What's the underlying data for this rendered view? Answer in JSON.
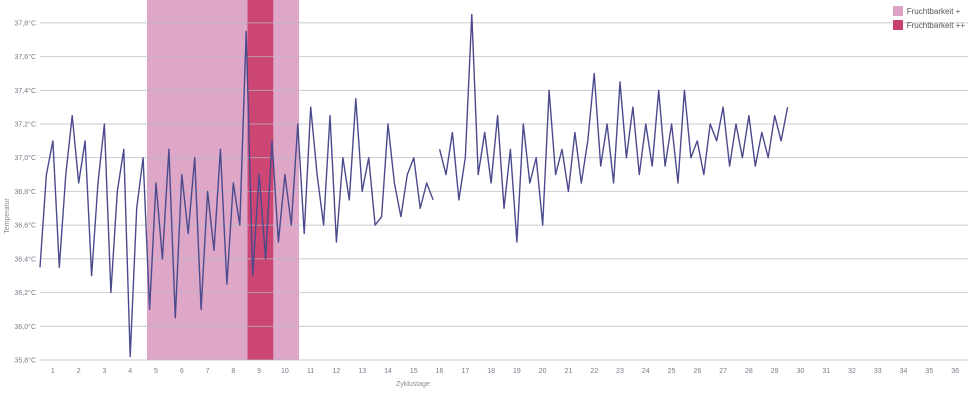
{
  "chart_data": {
    "type": "line",
    "xlabel": "Zyklustage",
    "ylabel": "Temperatur",
    "x_categories": [
      "1",
      "2",
      "3",
      "4",
      "5",
      "6",
      "7",
      "8",
      "9",
      "10",
      "11",
      "12",
      "13",
      "14",
      "15",
      "16",
      "17",
      "18",
      "19",
      "20",
      "21",
      "22",
      "23",
      "24",
      "25",
      "26",
      "27",
      "28",
      "29",
      "30",
      "31",
      "32",
      "33",
      "34",
      "35",
      "36"
    ],
    "y_ticks": [
      {
        "value": 35.8,
        "label": "35,8°C"
      },
      {
        "value": 36.0,
        "label": "36,0°C"
      },
      {
        "value": 36.2,
        "label": "36,2°C"
      },
      {
        "value": 36.4,
        "label": "36,4°C"
      },
      {
        "value": 36.6,
        "label": "36,6°C"
      },
      {
        "value": 36.8,
        "label": "36,8°C"
      },
      {
        "value": 37.0,
        "label": "37,0°C"
      },
      {
        "value": 37.2,
        "label": "37,2°C"
      },
      {
        "value": 37.4,
        "label": "37,4°C"
      },
      {
        "value": 37.6,
        "label": "37,6°C"
      },
      {
        "value": 37.8,
        "label": "37,8°C"
      }
    ],
    "ylim": [
      35.8,
      37.9
    ],
    "xlim": [
      0.5,
      36.5
    ],
    "grid": true,
    "legend_position": "top-right",
    "legend": [
      {
        "label": "Fruchtbarkeit +",
        "color": "#dca2c5"
      },
      {
        "label": "Fruchtbarkeit ++",
        "color": "#c9406f"
      }
    ],
    "bands": [
      {
        "name": "Fruchtbarkeit +",
        "x_start": 4.65,
        "x_end": 10.55,
        "color": "#dca2c5"
      },
      {
        "name": "Fruchtbarkeit ++",
        "x_start": 8.55,
        "x_end": 9.55,
        "color": "#c9406f"
      }
    ],
    "series": [
      {
        "color": "#4b4a8c",
        "segments": [
          {
            "x": [
              0.5,
              0.75,
              1.0,
              1.25,
              1.5,
              1.75,
              2.0,
              2.25,
              2.5,
              2.75,
              3.0,
              3.25,
              3.5,
              3.75,
              4.0,
              4.25,
              4.5,
              4.75,
              5.0,
              5.25,
              5.5,
              5.75,
              6.0,
              6.25,
              6.5,
              6.75,
              7.0,
              7.25,
              7.5,
              7.75,
              8.0,
              8.25,
              8.5,
              8.75,
              9.0,
              9.25,
              9.5,
              9.75,
              10.0,
              10.25,
              10.5,
              10.75,
              11.0,
              11.25,
              11.5,
              11.75,
              12.0,
              12.25,
              12.5,
              12.75,
              13.0,
              13.25,
              13.5,
              13.75,
              14.0,
              14.25,
              14.5,
              14.75,
              15.0,
              15.25,
              15.5,
              15.75
            ],
            "y": [
              36.35,
              36.9,
              37.1,
              36.35,
              36.9,
              37.25,
              36.85,
              37.1,
              36.3,
              36.85,
              37.2,
              36.2,
              36.8,
              37.05,
              35.82,
              36.7,
              37.0,
              36.1,
              36.85,
              36.4,
              37.05,
              36.05,
              36.9,
              36.55,
              37.0,
              36.1,
              36.8,
              36.45,
              37.05,
              36.25,
              36.85,
              36.6,
              37.75,
              36.3,
              36.9,
              36.4,
              37.1,
              36.5,
              36.9,
              36.6,
              37.2,
              36.55,
              37.3,
              36.9,
              36.6,
              37.25,
              36.5,
              37.0,
              36.75,
              37.35,
              36.8,
              37.0,
              36.6,
              36.65,
              37.2,
              36.85,
              36.65,
              36.9,
              37.0,
              36.7,
              36.85,
              36.75
            ]
          },
          {
            "x": [
              16.0,
              16.25,
              16.5,
              16.75,
              17.0,
              17.25,
              17.5,
              17.75,
              18.0,
              18.25,
              18.5,
              18.75,
              19.0,
              19.25,
              19.5,
              19.75,
              20.0,
              20.25,
              20.5,
              20.75,
              21.0,
              21.25,
              21.5,
              21.75,
              22.0,
              22.25,
              22.5,
              22.75,
              23.0,
              23.25,
              23.5,
              23.75,
              24.0,
              24.25,
              24.5,
              24.75,
              25.0,
              25.25,
              25.5,
              25.75,
              26.0,
              26.25,
              26.5,
              26.75,
              27.0,
              27.25,
              27.5,
              27.75,
              28.0,
              28.25,
              28.5,
              28.75,
              29.0,
              29.25,
              29.5
            ],
            "y": [
              37.05,
              36.9,
              37.15,
              36.75,
              37.0,
              37.85,
              36.9,
              37.15,
              36.85,
              37.25,
              36.7,
              37.05,
              36.5,
              37.2,
              36.85,
              37.0,
              36.6,
              37.4,
              36.9,
              37.05,
              36.8,
              37.15,
              36.85,
              37.1,
              37.5,
              36.95,
              37.2,
              36.85,
              37.45,
              37.0,
              37.3,
              36.9,
              37.2,
              36.95,
              37.4,
              36.95,
              37.2,
              36.85,
              37.4,
              37.0,
              37.1,
              36.9,
              37.2,
              37.1,
              37.3,
              36.95,
              37.2,
              37.0,
              37.25,
              36.95,
              37.15,
              37.0,
              37.25,
              37.1,
              37.3
            ]
          }
        ]
      }
    ]
  }
}
